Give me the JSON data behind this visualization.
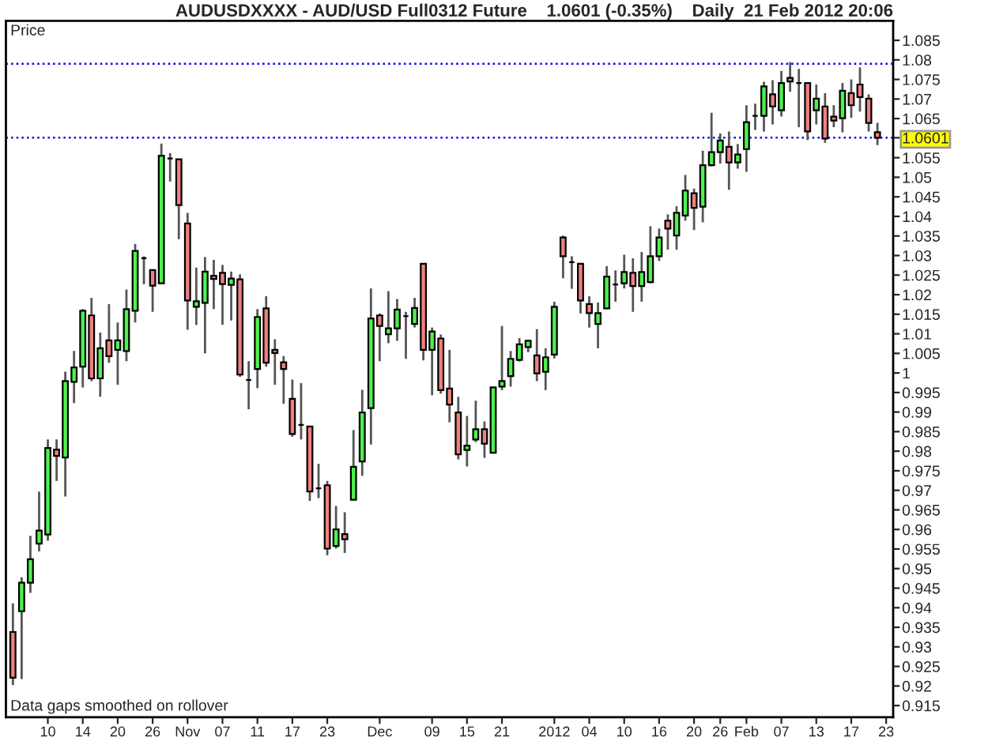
{
  "chart_data": {
    "type": "candlestick",
    "title": "AUDUSDXXXX - AUD/USD Full0312 Future    1.0601 (-0.35%)    Daily  21 Feb 2012 20:06",
    "ylabel": "Price",
    "annotations": [
      "Data gaps smoothed on rollover"
    ],
    "categories": [
      null,
      null,
      null,
      null,
      "10",
      null,
      null,
      null,
      "14",
      null,
      null,
      null,
      "20",
      null,
      null,
      null,
      "26",
      null,
      null,
      null,
      "Nov",
      null,
      null,
      null,
      "07",
      null,
      null,
      null,
      "11",
      null,
      null,
      null,
      "17",
      null,
      null,
      null,
      "23",
      null,
      null,
      null,
      null,
      null,
      "Dec",
      null,
      null,
      null,
      null,
      null,
      "09",
      null,
      null,
      null,
      "15",
      null,
      null,
      null,
      "21",
      null,
      null,
      null,
      null,
      null,
      "2012",
      null,
      null,
      null,
      "04",
      null,
      null,
      null,
      "10",
      null,
      null,
      null,
      "16",
      null,
      null,
      null,
      "20",
      null,
      null,
      "26",
      null,
      null,
      "Feb",
      null,
      null,
      null,
      "07",
      null,
      null,
      null,
      "13",
      null,
      null,
      null,
      "17",
      null,
      null,
      null,
      "23"
    ],
    "ohlc": [
      [
        0.9338,
        0.9411,
        0.9202,
        0.9221
      ],
      [
        0.9391,
        0.9478,
        0.9218,
        0.9464
      ],
      [
        0.9464,
        0.9584,
        0.9438,
        0.9524
      ],
      [
        0.9564,
        0.9697,
        0.9544,
        0.9597
      ],
      [
        0.9587,
        0.983,
        0.9571,
        0.9808
      ],
      [
        0.9804,
        0.983,
        0.9724,
        0.9788
      ],
      [
        0.9784,
        1.0003,
        0.9684,
        0.9979
      ],
      [
        0.9977,
        1.0056,
        0.9923,
        1.0014
      ],
      [
        1.0016,
        1.0163,
        0.9963,
        1.0159
      ],
      [
        1.0147,
        1.0192,
        0.9979,
        0.9986
      ],
      [
        0.9986,
        1.0103,
        0.9939,
        1.0063
      ],
      [
        1.0083,
        1.0176,
        1.0026,
        1.0043
      ],
      [
        1.0059,
        1.0129,
        0.997,
        1.0083
      ],
      [
        1.0056,
        1.0213,
        1.003,
        1.0163
      ],
      [
        1.0159,
        1.0329,
        1.0129,
        1.0312
      ],
      [
        1.0293,
        1.0298,
        1.0227,
        1.0293
      ],
      [
        1.0263,
        1.0263,
        1.0156,
        1.0223
      ],
      [
        1.0229,
        1.0586,
        1.0229,
        1.0555
      ],
      [
        1.0548,
        1.0562,
        1.0489,
        1.0548
      ],
      [
        1.0546,
        1.0546,
        1.0342,
        1.0429
      ],
      [
        1.0382,
        1.0409,
        1.011,
        1.0185
      ],
      [
        1.0169,
        1.0269,
        1.0123,
        1.0183
      ],
      [
        1.0179,
        1.0296,
        1.005,
        1.0259
      ],
      [
        1.0248,
        1.0289,
        1.0163,
        1.024
      ],
      [
        1.0256,
        1.0276,
        1.0123,
        1.0227
      ],
      [
        1.0225,
        1.0259,
        1.0134,
        1.0241
      ],
      [
        1.0239,
        1.0252,
        0.999,
        0.9996
      ],
      [
        0.9982,
        1.003,
        0.9907,
        0.9982
      ],
      [
        1.001,
        1.0163,
        0.9961,
        1.0143
      ],
      [
        1.0165,
        1.0196,
        1.0016,
        1.0026
      ],
      [
        1.0059,
        1.0086,
        0.997,
        1.0051
      ],
      [
        1.0027,
        1.0043,
        0.9921,
        1.001
      ],
      [
        0.9934,
        0.9983,
        0.9837,
        0.9844
      ],
      [
        0.9867,
        0.9974,
        0.983,
        0.9867
      ],
      [
        0.9863,
        0.9863,
        0.9673,
        0.9697
      ],
      [
        0.9705,
        0.9768,
        0.968,
        0.9705
      ],
      [
        0.9713,
        0.9724,
        0.9534,
        0.9551
      ],
      [
        0.9558,
        0.966,
        0.9551,
        0.96
      ],
      [
        0.9588,
        0.9644,
        0.954,
        0.9575
      ],
      [
        0.9676,
        0.9854,
        0.9676,
        0.976
      ],
      [
        0.9774,
        0.9957,
        0.9737,
        0.9899
      ],
      [
        0.991,
        1.0216,
        0.9817,
        1.0139
      ],
      [
        1.0147,
        1.0152,
        1.003,
        1.012
      ],
      [
        1.0099,
        1.0209,
        1.0076,
        1.0114
      ],
      [
        1.0114,
        1.0189,
        1.0082,
        1.0162
      ],
      [
        1.0145,
        1.0156,
        1.0036,
        1.0145
      ],
      [
        1.0125,
        1.0192,
        1.0116,
        1.0166
      ],
      [
        1.0279,
        1.0279,
        1.0032,
        1.0059
      ],
      [
        1.0059,
        1.0116,
        0.9943,
        1.0106
      ],
      [
        1.0088,
        1.0098,
        0.9947,
        0.9956
      ],
      [
        0.996,
        1.0059,
        0.9874,
        0.9919
      ],
      [
        0.9899,
        0.9939,
        0.9779,
        0.9792
      ],
      [
        0.9803,
        0.989,
        0.9761,
        0.9814
      ],
      [
        0.983,
        0.9929,
        0.9823,
        0.9856
      ],
      [
        0.9856,
        0.9876,
        0.9783,
        0.9819
      ],
      [
        0.9796,
        0.9963,
        0.9796,
        0.9963
      ],
      [
        0.9965,
        1.012,
        0.9956,
        0.9979
      ],
      [
        0.9992,
        1.0056,
        0.9965,
        1.0036
      ],
      [
        1.0033,
        1.0089,
        1.0029,
        1.0073
      ],
      [
        1.0066,
        1.0085,
        1.0053,
        1.0082
      ],
      [
        1.0045,
        1.0112,
        0.9979,
        0.9999
      ],
      [
        1.0003,
        1.0063,
        0.9956,
        1.004
      ],
      [
        1.0047,
        1.0182,
        1.0037,
        1.0169
      ],
      [
        1.0346,
        1.0351,
        1.0242,
        1.0298
      ],
      [
        1.0283,
        1.0298,
        1.0215,
        1.0283
      ],
      [
        1.0279,
        1.0279,
        1.0152,
        1.0185
      ],
      [
        1.0176,
        1.0196,
        1.0116,
        1.0153
      ],
      [
        1.0125,
        1.018,
        1.0063,
        1.0153
      ],
      [
        1.0165,
        1.0273,
        1.0163,
        1.0246
      ],
      [
        1.0226,
        1.0262,
        1.0182,
        1.0226
      ],
      [
        1.0229,
        1.0302,
        1.0216,
        1.0258
      ],
      [
        1.0256,
        1.0293,
        1.0156,
        1.0222
      ],
      [
        1.0222,
        1.0309,
        1.0182,
        1.0258
      ],
      [
        1.0232,
        1.0375,
        1.0229,
        1.0298
      ],
      [
        1.0298,
        1.0369,
        1.0286,
        1.0346
      ],
      [
        1.0389,
        1.0405,
        1.0315,
        1.0369
      ],
      [
        1.0351,
        1.0426,
        1.0315,
        1.0409
      ],
      [
        1.0402,
        1.0506,
        1.0389,
        1.0466
      ],
      [
        1.0459,
        1.0471,
        1.0365,
        1.0422
      ],
      [
        1.0425,
        1.0568,
        1.0385,
        1.0531
      ],
      [
        1.0531,
        1.0665,
        1.0528,
        1.0564
      ],
      [
        1.0564,
        1.0612,
        1.0535,
        1.0594
      ],
      [
        1.0578,
        1.0617,
        1.0468,
        1.0538
      ],
      [
        1.0538,
        1.0585,
        1.0522,
        1.0558
      ],
      [
        1.0572,
        1.0684,
        1.0514,
        1.0641
      ],
      [
        1.0657,
        1.0688,
        1.0621,
        1.0657
      ],
      [
        1.0657,
        1.0744,
        1.0617,
        1.0732
      ],
      [
        1.0712,
        1.0748,
        1.0635,
        1.0681
      ],
      [
        1.0671,
        1.0772,
        1.0655,
        1.0741
      ],
      [
        1.0754,
        1.0794,
        1.0719,
        1.0745
      ],
      [
        1.0741,
        1.0777,
        1.0628,
        1.0741
      ],
      [
        1.0741,
        1.0741,
        1.0595,
        1.0617
      ],
      [
        1.0671,
        1.0737,
        1.0635,
        1.0701
      ],
      [
        1.0681,
        1.0715,
        1.0588,
        1.0599
      ],
      [
        1.0655,
        1.0684,
        1.0628,
        1.0645
      ],
      [
        1.0651,
        1.0741,
        1.0615,
        1.0721
      ],
      [
        1.0715,
        1.075,
        1.0652,
        1.0684
      ],
      [
        1.0737,
        1.0781,
        1.0668,
        1.0705
      ],
      [
        1.0701,
        1.0712,
        1.0617,
        1.0639
      ],
      [
        1.0615,
        1.0639,
        1.0582,
        1.0601
      ],
      null
    ],
    "colors": [
      "#f08080",
      "#4cf24c",
      "#4cf24c",
      "#4cf24c",
      "#4cf24c",
      "#f08080",
      "#4cf24c",
      "#4cf24c",
      "#4cf24c",
      "#f08080",
      "#4cf24c",
      "#f08080",
      "#4cf24c",
      "#4cf24c",
      "#4cf24c",
      "#000000",
      "#f08080",
      "#4cf24c",
      "#000000",
      "#f08080",
      "#f08080",
      "#4cf24c",
      "#4cf24c",
      "#f08080",
      "#f08080",
      "#4cf24c",
      "#f08080",
      "#000000",
      "#4cf24c",
      "#f08080",
      "#f08080",
      "#f08080",
      "#f08080",
      "#000000",
      "#f08080",
      "#000000",
      "#f08080",
      "#4cf24c",
      "#f08080",
      "#4cf24c",
      "#4cf24c",
      "#4cf24c",
      "#f08080",
      "#4cf24c",
      "#4cf24c",
      "#000000",
      "#4cf24c",
      "#f08080",
      "#4cf24c",
      "#f08080",
      "#f08080",
      "#f08080",
      "#4cf24c",
      "#4cf24c",
      "#f08080",
      "#4cf24c",
      "#4cf24c",
      "#4cf24c",
      "#4cf24c",
      "#4cf24c",
      "#f08080",
      "#4cf24c",
      "#4cf24c",
      "#f08080",
      "#000000",
      "#f08080",
      "#f08080",
      "#4cf24c",
      "#4cf24c",
      "#000000",
      "#4cf24c",
      "#f08080",
      "#4cf24c",
      "#4cf24c",
      "#4cf24c",
      "#f08080",
      "#4cf24c",
      "#4cf24c",
      "#f08080",
      "#4cf24c",
      "#4cf24c",
      "#4cf24c",
      "#f08080",
      "#4cf24c",
      "#4cf24c",
      "#000000",
      "#4cf24c",
      "#f08080",
      "#4cf24c",
      "#f08080",
      "#000000",
      "#f08080",
      "#4cf24c",
      "#f08080",
      "#f08080",
      "#4cf24c",
      "#f08080",
      "#f08080",
      "#f08080",
      "#f08080",
      null
    ],
    "ylim": [
      0.912,
      1.09
    ],
    "yticks": [
      0.915,
      0.92,
      0.925,
      0.93,
      0.935,
      0.94,
      0.945,
      0.95,
      0.955,
      0.96,
      0.965,
      0.97,
      0.975,
      0.98,
      0.985,
      0.99,
      0.995,
      1,
      1.005,
      1.01,
      1.015,
      1.02,
      1.025,
      1.03,
      1.035,
      1.04,
      1.045,
      1.05,
      1.055,
      {
        "value": 1.0601,
        "label": "1.0601"
      },
      1.065,
      1.07,
      1.075,
      1.08,
      1.085
    ],
    "ref_lines": [
      {
        "axis": "y",
        "value": 1.079,
        "color": "#0000ff",
        "line_style": "dotted"
      },
      {
        "axis": "y",
        "value": 1.0601,
        "color": "#0000ff",
        "line_style": "dotted"
      }
    ],
    "grid": false,
    "legend": false
  }
}
